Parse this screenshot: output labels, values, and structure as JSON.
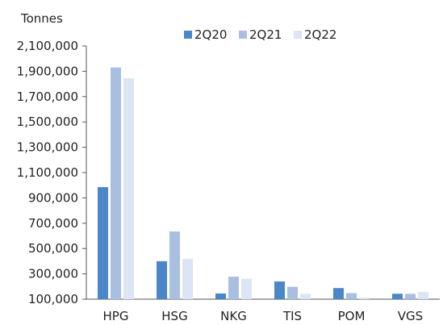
{
  "chart_data": {
    "type": "bar",
    "title": "",
    "ylabel": "Tonnes",
    "xlabel": "",
    "categories": [
      "HPG",
      "HSG",
      "NKG",
      "TIS",
      "POM",
      "VGS"
    ],
    "series": [
      {
        "name": "2Q20",
        "color": "#4a86c8",
        "values": [
          985000,
          400000,
          145000,
          240000,
          188000,
          143000
        ]
      },
      {
        "name": "2Q21",
        "color": "#a9bfe2",
        "values": [
          1930000,
          635000,
          278000,
          198000,
          148000,
          143000
        ]
      },
      {
        "name": "2Q22",
        "color": "#dce5f5",
        "values": [
          1845000,
          418000,
          262000,
          143000,
          112000,
          158000
        ]
      }
    ],
    "ylim": [
      100000,
      2100000
    ],
    "yticks": [
      "100,000",
      "300,000",
      "500,000",
      "700,000",
      "900,000",
      "1,100,000",
      "1,300,000",
      "1,500,000",
      "1,700,000",
      "1,900,000",
      "2,100,000"
    ],
    "ytick_values": [
      100000,
      300000,
      500000,
      700000,
      900000,
      1100000,
      1300000,
      1500000,
      1700000,
      1900000,
      2100000
    ],
    "legend_position": "top",
    "grid": false
  }
}
